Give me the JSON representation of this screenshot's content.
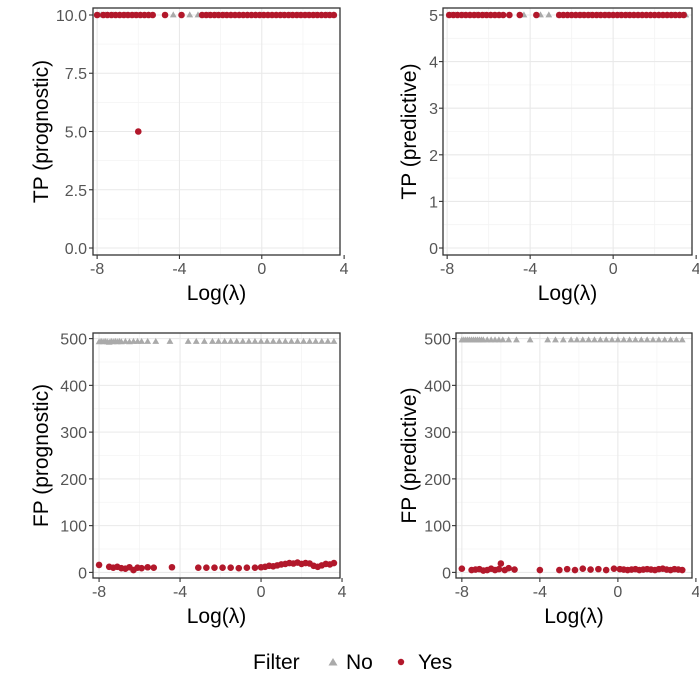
{
  "chart_data": [
    {
      "type": "scatter",
      "id": "tp-prognostic",
      "xlabel": "Log(λ)",
      "ylabel": "TP (prognostic)",
      "xlim": [
        -8.2,
        3.8
      ],
      "ylim": [
        -0.3,
        10.3
      ],
      "xticks": [
        -8,
        -4,
        0,
        4
      ],
      "xtick_labels": [
        "-8",
        "-4",
        "0",
        "4"
      ],
      "yticks": [
        0,
        2.5,
        5,
        7.5,
        10
      ],
      "ytick_labels": [
        "0.0",
        "2.5",
        "5.0",
        "7.5",
        "10.0"
      ],
      "grid": true,
      "series": [
        {
          "name": "No",
          "marker": "triangle",
          "color": "#aaaaaa",
          "x": [
            -7.9,
            -7.8,
            -7.6,
            -7.5,
            -7.2,
            -6.9,
            -6.6,
            -6.2,
            -5.9,
            -5.5,
            -4.3,
            -3.5,
            -3.1,
            -2.6,
            -2.2,
            -1.8,
            -1.5,
            -1.1,
            -0.7,
            -0.3,
            0.0,
            0.3,
            0.7,
            1.0,
            1.4,
            1.8,
            2.2,
            2.6,
            2.9,
            3.2,
            3.5
          ],
          "y": [
            10,
            10,
            10,
            10,
            10,
            10,
            10,
            10,
            10,
            10,
            10,
            10,
            10,
            10,
            10,
            10,
            10,
            10,
            10,
            10,
            10,
            10,
            10,
            10,
            10,
            10,
            10,
            10,
            10,
            10,
            10
          ]
        },
        {
          "name": "Yes",
          "marker": "circle",
          "color": "#b2182b",
          "x": [
            -8.0,
            -7.7,
            -7.5,
            -7.3,
            -7.1,
            -6.9,
            -6.7,
            -6.5,
            -6.3,
            -6.1,
            -5.9,
            -5.7,
            -5.5,
            -5.3,
            -4.7,
            -3.9,
            -2.9,
            -2.7,
            -2.5,
            -2.3,
            -2.1,
            -1.9,
            -1.7,
            -1.5,
            -1.3,
            -1.1,
            -0.9,
            -0.7,
            -0.5,
            -0.3,
            -0.1,
            0.1,
            0.3,
            0.5,
            0.7,
            0.9,
            1.1,
            1.3,
            1.5,
            1.7,
            1.9,
            2.1,
            2.3,
            2.5,
            2.7,
            2.9,
            3.1,
            3.3,
            3.5,
            -6.0
          ],
          "y": [
            10,
            10,
            10,
            10,
            10,
            10,
            10,
            10,
            10,
            10,
            10,
            10,
            10,
            10,
            10,
            10,
            10,
            10,
            10,
            10,
            10,
            10,
            10,
            10,
            10,
            10,
            10,
            10,
            10,
            10,
            10,
            10,
            10,
            10,
            10,
            10,
            10,
            10,
            10,
            10,
            10,
            10,
            10,
            10,
            10,
            10,
            10,
            10,
            10,
            5
          ]
        }
      ]
    },
    {
      "type": "scatter",
      "id": "tp-predictive",
      "xlabel": "Log(λ)",
      "ylabel": "TP (predictive)",
      "xlim": [
        -8.2,
        3.8
      ],
      "ylim": [
        -0.15,
        5.15
      ],
      "xticks": [
        -8,
        -4,
        0,
        4
      ],
      "xtick_labels": [
        "-8",
        "-4",
        "0",
        "4"
      ],
      "yticks": [
        0,
        1,
        2,
        3,
        4,
        5
      ],
      "ytick_labels": [
        "0",
        "1",
        "2",
        "3",
        "4",
        "5"
      ],
      "grid": true,
      "series": [
        {
          "name": "No",
          "marker": "triangle",
          "color": "#aaaaaa",
          "x": [
            -7.9,
            -7.8,
            -7.6,
            -7.5,
            -7.2,
            -6.9,
            -6.6,
            -6.2,
            -5.9,
            -5.5,
            -4.3,
            -3.5,
            -3.1,
            -2.6,
            -2.2,
            -1.8,
            -1.5,
            -1.1,
            -0.7,
            -0.3,
            0.0,
            0.3,
            0.7,
            1.0,
            1.4,
            1.8,
            2.2,
            2.6,
            2.9,
            3.2,
            3.5
          ],
          "y": [
            5,
            5,
            5,
            5,
            5,
            5,
            5,
            5,
            5,
            5,
            5,
            5,
            5,
            5,
            5,
            5,
            5,
            5,
            5,
            5,
            5,
            5,
            5,
            5,
            5,
            5,
            5,
            5,
            5,
            5,
            5
          ]
        },
        {
          "name": "Yes",
          "marker": "circle",
          "color": "#b2182b",
          "x": [
            -7.9,
            -7.7,
            -7.5,
            -7.3,
            -7.1,
            -6.9,
            -6.7,
            -6.5,
            -6.3,
            -6.1,
            -5.9,
            -5.7,
            -5.5,
            -5.3,
            -5.0,
            -4.5,
            -3.7,
            -2.6,
            -2.4,
            -2.2,
            -2.0,
            -1.8,
            -1.6,
            -1.4,
            -1.2,
            -1.0,
            -0.8,
            -0.6,
            -0.4,
            -0.2,
            0.0,
            0.2,
            0.4,
            0.6,
            0.8,
            1.0,
            1.2,
            1.4,
            1.6,
            1.8,
            2.0,
            2.2,
            2.4,
            2.6,
            2.8,
            3.0,
            3.2,
            3.4
          ],
          "y": [
            5,
            5,
            5,
            5,
            5,
            5,
            5,
            5,
            5,
            5,
            5,
            5,
            5,
            5,
            5,
            5,
            5,
            5,
            5,
            5,
            5,
            5,
            5,
            5,
            5,
            5,
            5,
            5,
            5,
            5,
            5,
            5,
            5,
            5,
            5,
            5,
            5,
            5,
            5,
            5,
            5,
            5,
            5,
            5,
            5,
            5,
            5,
            5
          ]
        }
      ]
    },
    {
      "type": "scatter",
      "id": "fp-prognostic",
      "xlabel": "Log(λ)",
      "ylabel": "FP (prognostic)",
      "xlim": [
        -8.3,
        3.9
      ],
      "ylim": [
        -12,
        512
      ],
      "xticks": [
        -8,
        -4,
        0,
        4
      ],
      "xtick_labels": [
        "-8",
        "-4",
        "0",
        "4"
      ],
      "yticks": [
        0,
        100,
        200,
        300,
        400,
        500
      ],
      "ytick_labels": [
        "0",
        "100",
        "200",
        "300",
        "400",
        "500"
      ],
      "grid": true,
      "series": [
        {
          "name": "No",
          "marker": "triangle",
          "color": "#aaaaaa",
          "x": [
            -8.0,
            -7.9,
            -7.8,
            -7.7,
            -7.6,
            -7.5,
            -7.4,
            -7.3,
            -7.2,
            -7.1,
            -7.0,
            -6.9,
            -6.7,
            -6.5,
            -6.3,
            -6.1,
            -5.9,
            -5.6,
            -5.2,
            -4.5,
            -3.6,
            -3.2,
            -2.8,
            -2.4,
            -2.1,
            -1.8,
            -1.5,
            -1.2,
            -0.9,
            -0.6,
            -0.3,
            0.0,
            0.3,
            0.6,
            0.9,
            1.2,
            1.5,
            1.8,
            2.1,
            2.4,
            2.7,
            3.0,
            3.3,
            3.6
          ],
          "y": [
            493,
            494,
            493,
            494,
            493,
            492,
            494,
            493,
            494,
            493,
            494,
            493,
            494,
            493,
            494,
            494,
            494,
            494,
            494,
            494,
            494,
            494,
            494,
            494,
            494,
            494,
            494,
            494,
            494,
            494,
            494,
            494,
            494,
            494,
            494,
            494,
            494,
            494,
            494,
            494,
            494,
            494,
            494,
            494
          ]
        },
        {
          "name": "Yes",
          "marker": "circle",
          "color": "#b2182b",
          "x": [
            -8.0,
            -7.5,
            -7.3,
            -7.1,
            -6.9,
            -6.7,
            -6.5,
            -6.3,
            -6.1,
            -5.9,
            -5.6,
            -5.3,
            -4.4,
            -3.1,
            -2.7,
            -2.3,
            -1.9,
            -1.5,
            -1.1,
            -0.7,
            -0.3,
            0.0,
            0.2,
            0.4,
            0.6,
            0.8,
            1.0,
            1.2,
            1.4,
            1.6,
            1.8,
            2.0,
            2.2,
            2.4,
            2.6,
            2.8,
            3.0,
            3.2,
            3.4,
            3.6
          ],
          "y": [
            16,
            12,
            10,
            12,
            9,
            8,
            11,
            5,
            10,
            9,
            11,
            10,
            11,
            10,
            10,
            10,
            10,
            10,
            9,
            10,
            10,
            11,
            12,
            14,
            13,
            15,
            17,
            18,
            20,
            19,
            21,
            18,
            20,
            19,
            14,
            12,
            15,
            18,
            17,
            20
          ]
        }
      ]
    },
    {
      "type": "scatter",
      "id": "fp-predictive",
      "xlabel": "Log(λ)",
      "ylabel": "FP (predictive)",
      "xlim": [
        -8.3,
        3.8
      ],
      "ylim": [
        -12,
        512
      ],
      "xticks": [
        -8,
        -4,
        0,
        4
      ],
      "xtick_labels": [
        "-8",
        "-4",
        "0",
        "4"
      ],
      "yticks": [
        0,
        100,
        200,
        300,
        400,
        500
      ],
      "ytick_labels": [
        "0",
        "100",
        "200",
        "300",
        "400",
        "500"
      ],
      "grid": true,
      "series": [
        {
          "name": "No",
          "marker": "triangle",
          "color": "#aaaaaa",
          "x": [
            -8.0,
            -7.9,
            -7.8,
            -7.7,
            -7.6,
            -7.5,
            -7.4,
            -7.3,
            -7.2,
            -7.1,
            -7.0,
            -6.9,
            -6.7,
            -6.5,
            -6.3,
            -6.1,
            -5.9,
            -5.6,
            -5.2,
            -4.5,
            -3.6,
            -3.2,
            -2.8,
            -2.4,
            -2.1,
            -1.8,
            -1.5,
            -1.2,
            -0.9,
            -0.6,
            -0.3,
            0.0,
            0.3,
            0.6,
            0.9,
            1.2,
            1.5,
            1.8,
            2.1,
            2.4,
            2.7,
            3.0,
            3.3
          ],
          "y": [
            497,
            497,
            497,
            497,
            497,
            497,
            497,
            497,
            497,
            497,
            497,
            497,
            497,
            497,
            497,
            497,
            497,
            497,
            497,
            497,
            497,
            497,
            497,
            497,
            497,
            497,
            497,
            497,
            497,
            497,
            497,
            497,
            497,
            497,
            497,
            497,
            497,
            497,
            497,
            497,
            497,
            497,
            497
          ]
        },
        {
          "name": "Yes",
          "marker": "circle",
          "color": "#b2182b",
          "x": [
            -8.0,
            -7.5,
            -7.3,
            -7.1,
            -6.9,
            -6.7,
            -6.5,
            -6.3,
            -6.1,
            -6.0,
            -5.8,
            -5.6,
            -5.3,
            -4.0,
            -3.0,
            -2.6,
            -2.2,
            -1.8,
            -1.4,
            -1.0,
            -0.6,
            -0.2,
            0.1,
            0.3,
            0.5,
            0.7,
            0.9,
            1.1,
            1.3,
            1.5,
            1.7,
            1.9,
            2.1,
            2.3,
            2.5,
            2.7,
            2.9,
            3.1,
            3.3
          ],
          "y": [
            8,
            5,
            6,
            7,
            4,
            5,
            8,
            5,
            7,
            19,
            5,
            9,
            6,
            5,
            5,
            7,
            5,
            8,
            6,
            7,
            5,
            8,
            7,
            6,
            5,
            6,
            7,
            5,
            6,
            7,
            6,
            5,
            7,
            8,
            6,
            5,
            7,
            6,
            5
          ]
        }
      ]
    }
  ],
  "legend": {
    "title": "Filter",
    "items": [
      {
        "label": "No",
        "marker": "triangle",
        "color": "#aaaaaa"
      },
      {
        "label": "Yes",
        "marker": "circle",
        "color": "#b2182b"
      }
    ]
  },
  "colors": {
    "no": "#aaaaaa",
    "yes": "#b2182b",
    "grid": "#ebebeb",
    "border": "#333333"
  }
}
